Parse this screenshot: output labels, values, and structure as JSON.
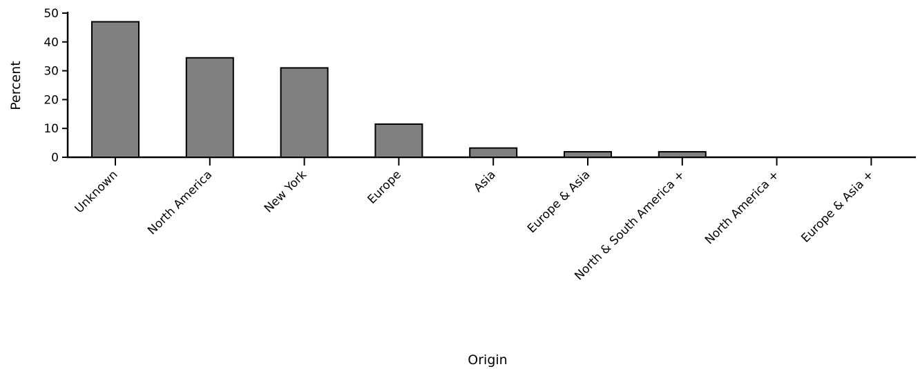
{
  "chart_data": {
    "type": "bar",
    "categories": [
      "Unknown",
      "North America",
      "New York",
      "Europe",
      "Asia",
      "Europe & Asia",
      "North & South America +",
      "North America +",
      "Europe & Asia +"
    ],
    "values": [
      47,
      34.5,
      31,
      11.5,
      3.2,
      1.9,
      1.9,
      0,
      0
    ],
    "xlabel": "Origin",
    "ylabel": "Percent",
    "ylim": [
      0,
      50
    ],
    "yticks": [
      0,
      10,
      20,
      30,
      40,
      50
    ],
    "grid": false,
    "bar_color": "#808080"
  }
}
